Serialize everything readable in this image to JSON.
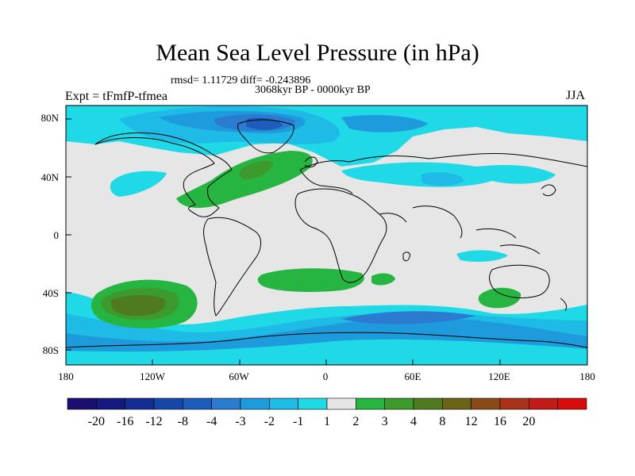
{
  "title": "Mean Sea Level Pressure (in hPa)",
  "stats": "rmsd= 1.11729 diff= -0.243896",
  "period": "3068kyr BP - 0000kyr BP",
  "experiment": "Expt = tFmfP-tfmea",
  "season": "JJA",
  "lat_labels": [
    "80N",
    "40N",
    "0",
    "40S",
    "80S"
  ],
  "lon_labels": [
    "180",
    "120W",
    "60W",
    "0",
    "60E",
    "120E",
    "180"
  ],
  "colorbar": {
    "colors": [
      "#1a0e6e",
      "#14187f",
      "#142d95",
      "#1646a8",
      "#1c5cba",
      "#2b7bd0",
      "#1e9bdc",
      "#1dbbe6",
      "#20d9e6",
      "#e6e6e6",
      "#27b542",
      "#3d9a2d",
      "#4f7a1f",
      "#6b6418",
      "#8a4a17",
      "#a8331a",
      "#c01b16",
      "#d80c0c"
    ],
    "labels": [
      "-20",
      "-16",
      "-12",
      "-8",
      "-4",
      "-3",
      "-2",
      "-1",
      "1",
      "2",
      "3",
      "4",
      "8",
      "12",
      "16",
      "20"
    ]
  }
}
